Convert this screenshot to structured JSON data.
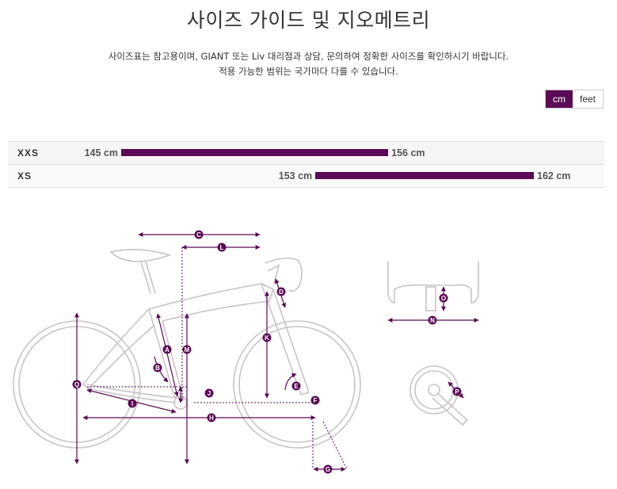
{
  "page": {
    "title": "사이즈 가이드 및 지오메트리",
    "notice_line1": "사이즈표는 참고용이며, GIANT 또는 Liv 대리점과 상담, 문의하여 정확한 사이즈를 확인하시기 바랍니다.",
    "notice_line2": "적용 가능한 범위는 국가마다 다를 수 있습니다."
  },
  "units": {
    "cm": "cm",
    "feet": "feet",
    "selected": "cm"
  },
  "sizes": [
    {
      "size": "XXS",
      "min": "145 cm",
      "max": "156 cm",
      "min_value": 145,
      "max_value": 156
    },
    {
      "size": "XS",
      "min": "153 cm",
      "max": "162 cm",
      "min_value": 153,
      "max_value": 162
    }
  ],
  "geometry": {
    "labels": [
      "C",
      "L",
      "D",
      "O",
      "N",
      "M",
      "A",
      "K",
      "B",
      "Q",
      "E",
      "J",
      "F",
      "P",
      "I",
      "H",
      "G"
    ]
  },
  "colors": {
    "accent": "#5b0b55",
    "bar": "#5b0b55"
  }
}
